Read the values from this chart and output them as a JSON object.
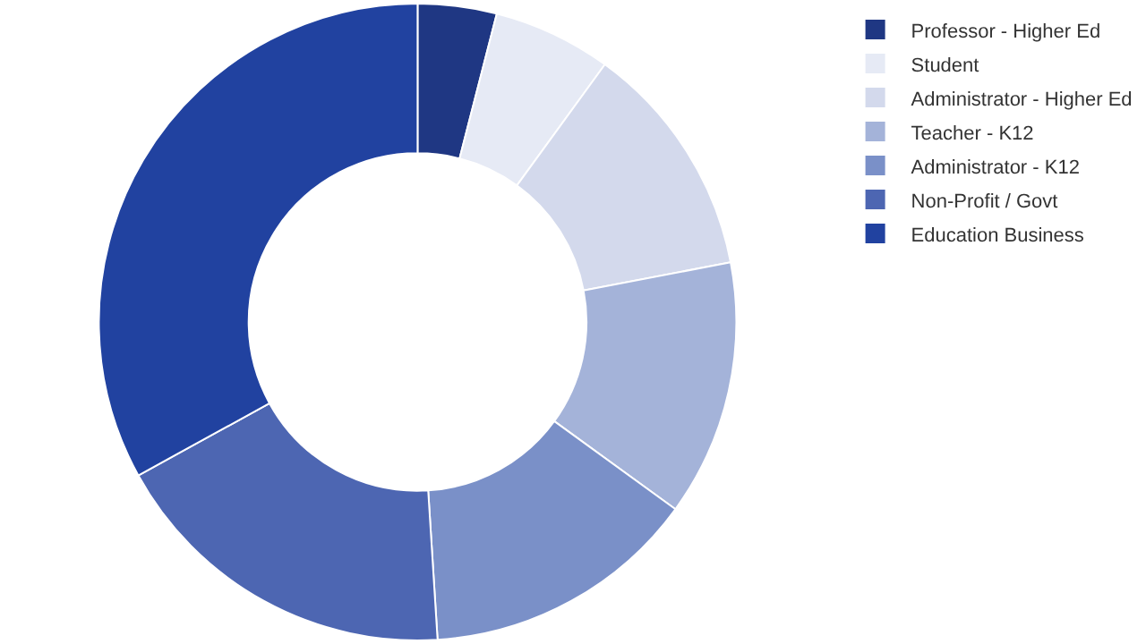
{
  "chart_data": {
    "type": "donut",
    "categories": [
      "Professor - Higher Ed",
      "Student",
      "Administrator - Higher Ed",
      "Teacher - K12",
      "Administrator - K12",
      "Non-Profit / Govt",
      "Education Business"
    ],
    "values": [
      4,
      6,
      12,
      13,
      14,
      18,
      33
    ],
    "colors": [
      "#1f3783",
      "#e6eaf5",
      "#d3d9ec",
      "#a4b3d9",
      "#7a90c8",
      "#4d66b2",
      "#2142a0"
    ],
    "legend": "top right"
  }
}
